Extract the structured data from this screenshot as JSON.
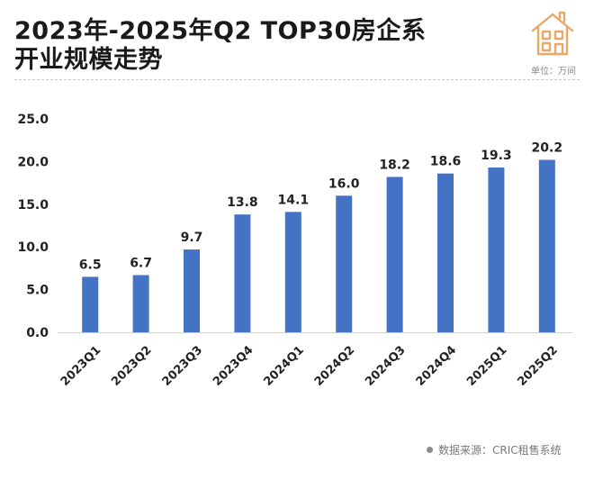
{
  "header": {
    "title_line1": "2023年-2025年Q2 TOP30房企系",
    "title_line2": "开业规模走势",
    "unit": "单位：万间"
  },
  "footer": {
    "source": "数据来源：CRIC租售系统"
  },
  "logo": {
    "icon": "house-icon",
    "color": "#e8a86a"
  },
  "chart_data": {
    "type": "bar",
    "title": "2023年-2025年Q2 TOP30房企系开业规模走势",
    "unit": "单位：万间",
    "categories": [
      "2023Q1",
      "2023Q2",
      "2023Q3",
      "2023Q4",
      "2024Q1",
      "2024Q2",
      "2024Q3",
      "2024Q4",
      "2025Q1",
      "2025Q2"
    ],
    "values": [
      6.5,
      6.7,
      9.7,
      13.8,
      14.1,
      16.0,
      18.2,
      18.6,
      19.3,
      20.2
    ],
    "value_labels": [
      "6.5",
      "6.7",
      "9.7",
      "13.8",
      "14.1",
      "16.0",
      "18.2",
      "18.6",
      "19.3",
      "20.2"
    ],
    "yticks": [
      "0.0",
      "5.0",
      "10.0",
      "15.0",
      "20.0",
      "25.0"
    ],
    "ylim": [
      0,
      25
    ],
    "grid": false,
    "bar_color": "#4472c4",
    "axis_color": "#d0d0d0"
  }
}
